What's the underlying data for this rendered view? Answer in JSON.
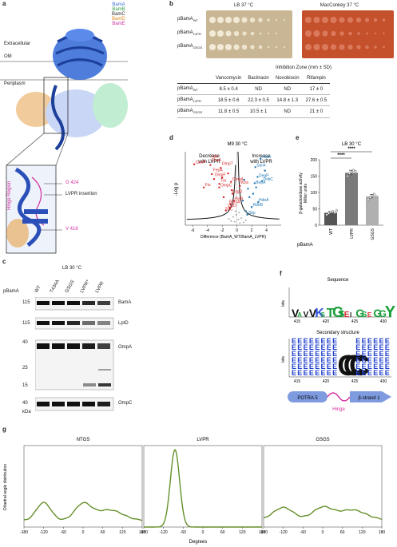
{
  "panel_a": {
    "label": "a",
    "legend": [
      {
        "name": "BamA",
        "color": "#3b6fd8"
      },
      {
        "name": "BamB",
        "color": "#2f9e44"
      },
      {
        "name": "BamC",
        "color": "#2a2a2a"
      },
      {
        "name": "BamD",
        "color": "#e08a1e"
      },
      {
        "name": "BamE",
        "color": "#d0309e"
      }
    ],
    "regions": [
      "Extracellular",
      "OM",
      "Periplasm"
    ],
    "hinge_label": "Hinge Region",
    "annotations": [
      "G 424",
      "LVPR insertion",
      "V 418"
    ]
  },
  "panel_b": {
    "label": "b",
    "plate_titles": [
      "LB 37 °C",
      "MacConkey 37 °C"
    ],
    "strains": [
      "pBamA",
      "pBamA",
      "pBamA"
    ],
    "strain_subscripts": [
      "WT",
      "LVPR",
      "GSGS"
    ],
    "table_title": "Inhibition Zone (mm ± SD)",
    "columns": [
      "Vancomycin",
      "Bacitracin",
      "Novobiocin",
      "Rifampin"
    ],
    "rows": [
      [
        "8.5 ± 0.4",
        "ND",
        "ND",
        "17 ± 0"
      ],
      [
        "18.5 ± 0.6",
        "22.3 ± 0.5",
        "14.8 ± 1.3",
        "27.6 ± 0.5"
      ],
      [
        "11.8 ± 0.5",
        "10.5 ± 1",
        "ND",
        "21 ± 0"
      ]
    ]
  },
  "panel_c": {
    "label": "c",
    "condition": "LB 30 °C",
    "row_title": "pBamA",
    "lanes": [
      "WT",
      "T434A",
      "GSGS",
      "LVPR*",
      "LVPR"
    ],
    "proteins": [
      "BamA",
      "LptD",
      "OmpA",
      "OmpC"
    ],
    "markers": [
      "115",
      "115",
      "40",
      "25",
      "15",
      "40"
    ],
    "unit": "kDa"
  },
  "panel_d": {
    "label": "d",
    "title": "M9 30 °C",
    "left_caption": "Decrease with LVPR",
    "right_caption": "Increase with LVPR",
    "red_labels": [
      "CirA",
      "Lpp",
      "FhuA",
      "OmpT",
      "FepA",
      "OmpF",
      "OmpA",
      "Tsx",
      "Fiu",
      "OmpC",
      "Wza",
      "CsgG",
      "PalB",
      "BamA",
      "LptD",
      "TolC"
    ],
    "blue_labels": [
      "FkpA",
      "SurA",
      "DegP",
      "BepA",
      "DsbC",
      "HdeA",
      "RdeB",
      "Skp"
    ]
  },
  "panel_e": {
    "label": "e",
    "title": "LB 30 °C",
    "sig": [
      "****",
      "****"
    ],
    "row_title": "pBamA",
    "groups": [
      "WT",
      "LVPR",
      "GSGS"
    ]
  },
  "panel_f": {
    "label": "f",
    "seq_title": "Sequence",
    "ss_title": "Secondary structure",
    "ticks": [
      "415",
      "420",
      "425",
      "430"
    ],
    "bits": "bits",
    "domains": [
      "POTRA 5",
      "Hinge",
      "β-strand 1"
    ]
  },
  "panel_g": {
    "label": "g",
    "titles": [
      "NTGS",
      "LVPR",
      "GSGS"
    ],
    "xticks": [
      "-180",
      "-120",
      "-60",
      "0",
      "60",
      "120",
      "180"
    ],
    "xlabel": "Degrees"
  },
  "chart_data": [
    {
      "type": "scatter",
      "title": "M9 30 °C",
      "xlabel": "Difference (BamA_WT/BamA_LVPR)",
      "ylabel": "-Log p",
      "xlim": [
        -7,
        6
      ],
      "xticks": [
        -6,
        -4,
        -2,
        0,
        2,
        4
      ],
      "series": [
        {
          "name": "Decrease with LVPR",
          "color": "#d62728",
          "points": [
            [
              -5.8,
              8.7
            ],
            [
              -4.4,
              9.1
            ],
            [
              -3.6,
              8.6
            ],
            [
              -2.2,
              8.2
            ],
            [
              -3.4,
              7.3
            ],
            [
              -3.1,
              6.6
            ],
            [
              -0.8,
              6.2
            ],
            [
              -2.4,
              5.9
            ],
            [
              -4.5,
              5.4
            ],
            [
              -2.4,
              5.4
            ],
            [
              0.4,
              5.6
            ],
            [
              -0.6,
              4.5
            ],
            [
              -0.4,
              3.5
            ],
            [
              -0.9,
              3.0
            ],
            [
              -1.0,
              2.5
            ],
            [
              -1.5,
              2.1
            ],
            [
              -2.0,
              6.8
            ],
            [
              -1.2,
              7.4
            ],
            [
              -0.7,
              5.0
            ],
            [
              -1.8,
              4.0
            ]
          ]
        },
        {
          "name": "Increase with LVPR",
          "color": "#1f77b4",
          "points": [
            [
              3.2,
              9.5
            ],
            [
              2.5,
              8.3
            ],
            [
              2.8,
              6.9
            ],
            [
              2.4,
              6.0
            ],
            [
              3.4,
              6.3
            ],
            [
              2.6,
              5.4
            ],
            [
              1.7,
              4.0
            ],
            [
              2.9,
              3.3
            ],
            [
              2.0,
              2.6
            ],
            [
              1.4,
              1.5
            ],
            [
              1.0,
              6.5
            ],
            [
              1.5,
              5.2
            ],
            [
              2.2,
              4.5
            ],
            [
              3.8,
              7.8
            ],
            [
              0.8,
              3.5
            ],
            [
              1.2,
              2.0
            ]
          ]
        }
      ],
      "cutoff_curve": true
    },
    {
      "type": "bar",
      "title": "LB 30 °C",
      "ylabel": "β-galactosidase activity\nMiller units",
      "categories": [
        "WT",
        "LVPR",
        "GSGS"
      ],
      "values": [
        38,
        160,
        88
      ],
      "errors": [
        4,
        8,
        6
      ],
      "points": [
        [
          32,
          36,
          40,
          42,
          38,
          45
        ],
        [
          150,
          158,
          162,
          168,
          165
        ],
        [
          80,
          85,
          90,
          95,
          88
        ]
      ],
      "colors": [
        "#555555",
        "#7a7a7a",
        "#b0b0b0"
      ],
      "ylim": [
        0,
        200
      ],
      "yticks": [
        0,
        50,
        100,
        150,
        200
      ]
    },
    {
      "type": "line",
      "titles": [
        "NTGS",
        "LVPR",
        "GSGS"
      ],
      "xlabel": "Degrees",
      "ylabel": "Dihedral angle distribution",
      "xlim": [
        -180,
        180
      ],
      "xticks": [
        -180,
        -120,
        -60,
        0,
        60,
        120,
        180
      ],
      "ylim": [
        0,
        1.0
      ],
      "series": [
        {
          "name": "NTGS",
          "peaks": [
            [
              -120,
              0.22,
              22
            ],
            [
              0,
              0.2,
              25
            ],
            [
              80,
              0.13,
              40
            ]
          ],
          "base": 0.08
        },
        {
          "name": "LVPR",
          "peaks": [
            [
              -85,
              0.95,
              14
            ]
          ],
          "base": 0.0
        },
        {
          "name": "GSGS",
          "peaks": [
            [
              -120,
              0.15,
              30
            ],
            [
              0,
              0.15,
              30
            ],
            [
              90,
              0.12,
              40
            ]
          ],
          "base": 0.09
        }
      ]
    }
  ]
}
